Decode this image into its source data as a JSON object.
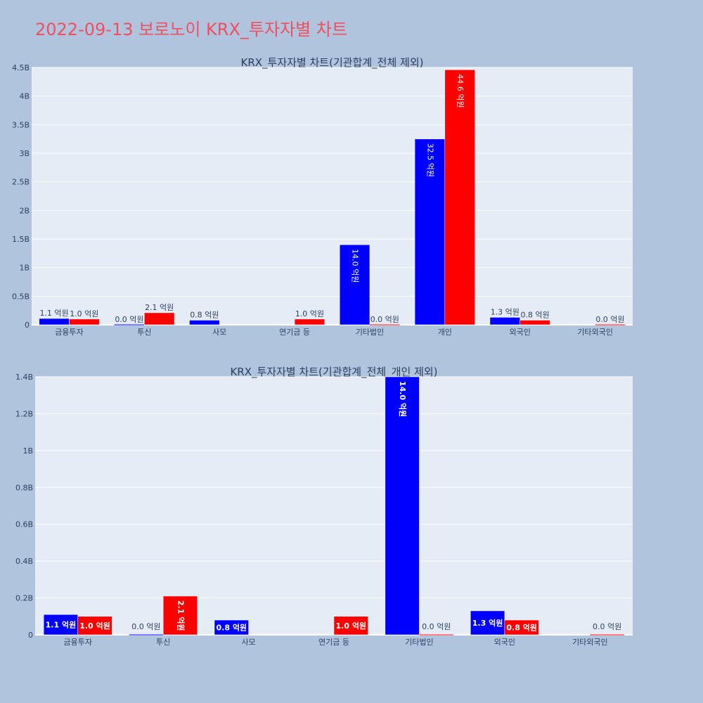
{
  "title": "2022-09-13 보로노이 KRX_투자자별 차트",
  "colors": {
    "background": "#b0c4de",
    "plot_bg": "#e5ecf6",
    "title": "#ef4f5e",
    "buy": "#0000ff",
    "sell": "#ff0000"
  },
  "chart_data": [
    {
      "type": "bar",
      "title": "KRX_투자자별 차트(기관합계_전체 제외)",
      "categories": [
        "금융투자",
        "투신",
        "사모",
        "연기금 등",
        "기타법인",
        "개인",
        "외국인",
        "기타외국인"
      ],
      "ylim": [
        0,
        4.5
      ],
      "yticks": [
        "0",
        "0.5B",
        "1B",
        "1.5B",
        "2B",
        "2.5B",
        "3B",
        "3.5B",
        "4B",
        "4.5B"
      ],
      "grid": true,
      "series": [
        {
          "color": "#0000ff",
          "values": [
            0.11,
            0.0,
            0.08,
            null,
            1.4,
            3.25,
            0.13,
            null
          ],
          "labels": [
            "1.1 억원",
            "0.0 억원",
            "0.8 억원",
            "",
            "14.0 억원",
            "32.5 억원",
            "1.3 억원",
            ""
          ]
        },
        {
          "color": "#ff0000",
          "values": [
            0.1,
            0.21,
            null,
            0.1,
            0.0,
            4.46,
            0.08,
            0.0
          ],
          "labels": [
            "1.0 억원",
            "2.1 억원",
            "",
            "1.0 억원",
            "0.0 억원",
            "44.6 억원",
            "0.8 억원",
            "0.0 억원"
          ]
        }
      ]
    },
    {
      "type": "bar",
      "title": "KRX_투자자별 차트(기관합계_전체_개인 제외)",
      "categories": [
        "금융투자",
        "투신",
        "사모",
        "연기금 등",
        "기타법인",
        "외국인",
        "기타외국인"
      ],
      "ylim": [
        0,
        1.4
      ],
      "yticks": [
        "0",
        "0.2B",
        "0.4B",
        "0.6B",
        "0.8B",
        "1B",
        "1.2B",
        "1.4B"
      ],
      "grid": true,
      "series": [
        {
          "color": "#0000ff",
          "values": [
            0.11,
            0.0,
            0.08,
            null,
            1.4,
            0.13,
            null
          ],
          "labels": [
            "1.1 억원",
            "0.0 억원",
            "0.8 억원",
            "",
            "14.0 억원",
            "1.3 억원",
            ""
          ]
        },
        {
          "color": "#ff0000",
          "values": [
            0.1,
            0.21,
            null,
            0.1,
            0.0,
            0.08,
            0.0
          ],
          "labels": [
            "1.0 억원",
            "2.1 억원",
            "",
            "1.0 억원",
            "0.0 억원",
            "0.8 억원",
            "0.0 억원"
          ]
        }
      ]
    }
  ]
}
